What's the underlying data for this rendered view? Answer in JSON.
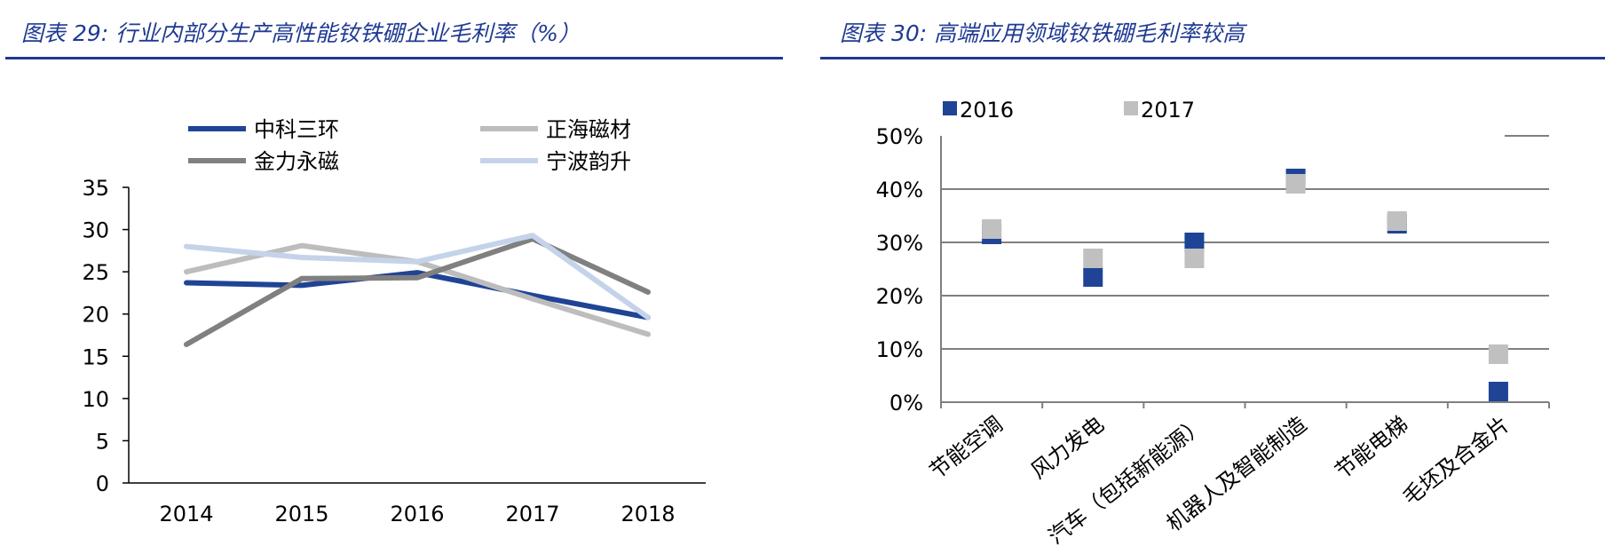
{
  "chart_data": [
    {
      "type": "line",
      "title": "图表 29: 行业内部分生产高性能钕铁硼企业毛利率（%）",
      "x": [
        "2014",
        "2015",
        "2016",
        "2017",
        "2018"
      ],
      "ylim": [
        0,
        35
      ],
      "yticks": [
        "0",
        "5",
        "10",
        "15",
        "20",
        "25",
        "30",
        "35"
      ],
      "grid": false,
      "legend": "top",
      "series": [
        {
          "name": "中科三环",
          "color": "#1f4496",
          "values": [
            23.7,
            23.4,
            24.9,
            22.2,
            19.6
          ]
        },
        {
          "name": "正海磁材",
          "color": "#bdbdbd",
          "values": [
            25.0,
            28.1,
            26.2,
            21.8,
            17.6
          ]
        },
        {
          "name": "金力永磁",
          "color": "#808080",
          "values": [
            16.4,
            24.2,
            24.3,
            28.9,
            22.6
          ]
        },
        {
          "name": "宁波韵升",
          "color": "#c5d3ea",
          "values": [
            28.0,
            26.7,
            26.2,
            29.3,
            19.6
          ]
        }
      ]
    },
    {
      "type": "scatter",
      "title": "图表 30: 高端应用领域钕铁硼毛利率较高",
      "categories": [
        "节能空调",
        "风力发电",
        "汽车（包括新能源）",
        "机器人及智能制造",
        "节能电梯",
        "毛坯及合金片"
      ],
      "ylim": [
        0,
        50
      ],
      "yticks": [
        "0%",
        "10%",
        "20%",
        "30%",
        "40%",
        "50%"
      ],
      "grid": true,
      "legend": "top",
      "series": [
        {
          "name": "2016",
          "color": "#1f4496",
          "values": [
            31.5,
            23.5,
            30.0,
            42.0,
            33.5,
            2.0
          ]
        },
        {
          "name": "2017",
          "color": "#c0c0c0",
          "values": [
            32.5,
            27.0,
            27.0,
            41.0,
            34.0,
            9.0
          ]
        }
      ]
    }
  ]
}
